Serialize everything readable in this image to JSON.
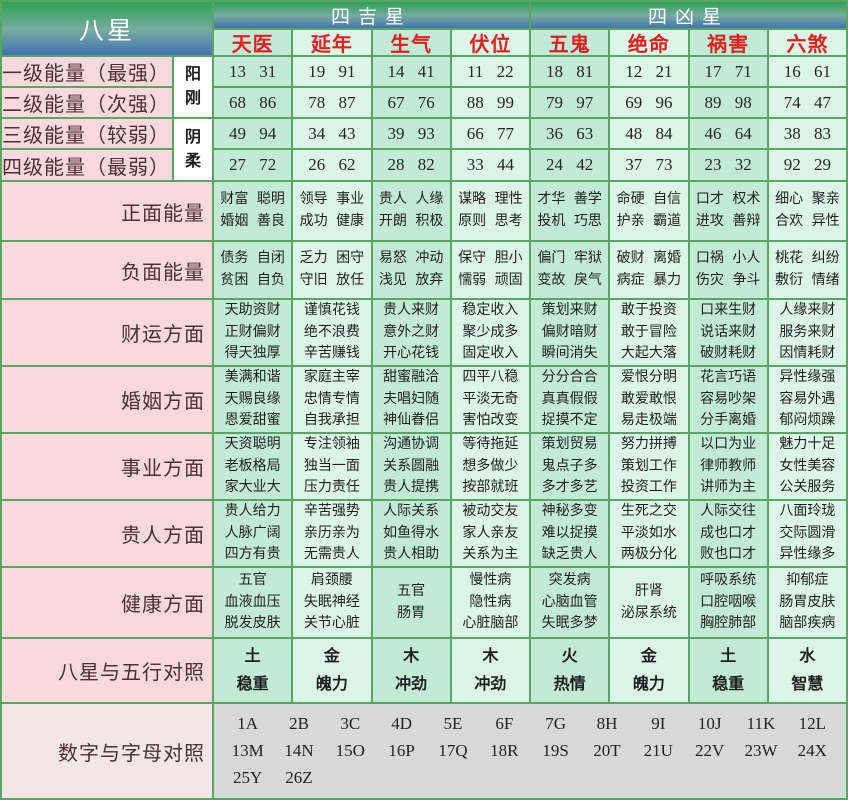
{
  "header": {
    "left": "八星",
    "auspicious": "四吉星",
    "inauspicious": "四凶星"
  },
  "stars": [
    "天医",
    "延年",
    "生气",
    "伏位",
    "五鬼",
    "绝命",
    "祸害",
    "六煞"
  ],
  "energy": {
    "rows": [
      {
        "label": "一级能量（最强）",
        "values": [
          "13 31",
          "19 91",
          "14 41",
          "11 22",
          "18 81",
          "12 21",
          "17 71",
          "16 61"
        ]
      },
      {
        "label": "二级能量（次强）",
        "values": [
          "68 86",
          "78 87",
          "67 76",
          "88 99",
          "79 97",
          "69 96",
          "89 98",
          "74 47"
        ]
      },
      {
        "label": "三级能量（较弱）",
        "values": [
          "49 94",
          "34 43",
          "39 93",
          "66 77",
          "36 63",
          "48 84",
          "46 64",
          "38 83"
        ]
      },
      {
        "label": "四级能量（最弱）",
        "values": [
          "27 72",
          "26 62",
          "28 82",
          "33 44",
          "24 42",
          "37 73",
          "23 32",
          "92 29"
        ]
      }
    ],
    "side_labels": [
      {
        "label": "阳刚",
        "span_rows": 2
      },
      {
        "label": "阴柔",
        "span_rows": 2
      }
    ]
  },
  "attribute_rows": [
    {
      "label": "正面能量",
      "cells": [
        [
          "财富 聪明",
          "婚姻 善良"
        ],
        [
          "领导 事业",
          "成功 健康"
        ],
        [
          "贵人 人缘",
          "开朗 积极"
        ],
        [
          "谋略 理性",
          "原则 思考"
        ],
        [
          "才华 善学",
          "投机 巧思"
        ],
        [
          "命硬 自信",
          "护亲 霸道"
        ],
        [
          "口才 权术",
          "进攻 善辩"
        ],
        [
          "细心 聚亲",
          "合欢 异性"
        ]
      ]
    },
    {
      "label": "负面能量",
      "cells": [
        [
          "债务 自闭",
          "贫困 自负"
        ],
        [
          "乏力 困守",
          "守旧 放任"
        ],
        [
          "易怒 冲动",
          "浅见 放弃"
        ],
        [
          "保守 胆小",
          "懦弱 顽固"
        ],
        [
          "偏门 牢狱",
          "变故 戾气"
        ],
        [
          "破财 离婚",
          "病症 暴力"
        ],
        [
          "口祸 小人",
          "伤灾 争斗"
        ],
        [
          "桃花 纠纷",
          "敷衍 情绪"
        ]
      ]
    },
    {
      "label": "财运方面",
      "cells": [
        [
          "天助资财",
          "正财偏财",
          "得天独厚"
        ],
        [
          "谨慎花钱",
          "绝不浪费",
          "辛苦赚钱"
        ],
        [
          "贵人来财",
          "意外之财",
          "开心花钱"
        ],
        [
          "稳定收入",
          "聚少成多",
          "固定收入"
        ],
        [
          "策划来财",
          "偏财暗财",
          "瞬间消失"
        ],
        [
          "敢于投资",
          "敢于冒险",
          "大起大落"
        ],
        [
          "口来生财",
          "说话来财",
          "破财耗财"
        ],
        [
          "人缘来财",
          "服务来财",
          "因情耗财"
        ]
      ]
    },
    {
      "label": "婚姻方面",
      "cells": [
        [
          "美满和谐",
          "天赐良缘",
          "恩爱甜蜜"
        ],
        [
          "家庭主宰",
          "忠情专情",
          "自我承担"
        ],
        [
          "甜蜜融洽",
          "夫唱妇随",
          "神仙眷侣"
        ],
        [
          "四平八稳",
          "平淡无奇",
          "害怕改变"
        ],
        [
          "分分合合",
          "真真假假",
          "捉摸不定"
        ],
        [
          "爱恨分明",
          "敢爱敢恨",
          "易走极端"
        ],
        [
          "花言巧语",
          "容易吵架",
          "分手离婚"
        ],
        [
          "异性缘强",
          "容易外遇",
          "郁闷烦躁"
        ]
      ]
    },
    {
      "label": "事业方面",
      "cells": [
        [
          "天资聪明",
          "老板格局",
          "家大业大"
        ],
        [
          "专注领袖",
          "独当一面",
          "压力责任"
        ],
        [
          "沟通协调",
          "关系圆融",
          "贵人提携"
        ],
        [
          "等待拖延",
          "想多做少",
          "按部就班"
        ],
        [
          "策划贸易",
          "鬼点子多",
          "多才多艺"
        ],
        [
          "努力拼搏",
          "策划工作",
          "投资工作"
        ],
        [
          "以口为业",
          "律师教师",
          "讲师为主"
        ],
        [
          "魅力十足",
          "女性美容",
          "公关服务"
        ]
      ]
    },
    {
      "label": "贵人方面",
      "cells": [
        [
          "贵人给力",
          "人脉广阔",
          "四方有贵"
        ],
        [
          "辛苦强势",
          "亲历亲为",
          "无需贵人"
        ],
        [
          "人际关系",
          "如鱼得水",
          "贵人相助"
        ],
        [
          "被动交友",
          "家人亲友",
          "关系为主"
        ],
        [
          "神秘多变",
          "难以捉摸",
          "缺乏贵人"
        ],
        [
          "生死之交",
          "平淡如水",
          "两极分化"
        ],
        [
          "人际交往",
          "成也口才",
          "败也口才"
        ],
        [
          "八面玲珑",
          "交际圆滑",
          "异性缘多"
        ]
      ]
    },
    {
      "label": "健康方面",
      "cells": [
        [
          "五官",
          "血液血压",
          "脱发皮肤"
        ],
        [
          "肩颈腰",
          "失眠神经",
          "关节心脏"
        ],
        [
          "五官",
          "肠胃"
        ],
        [
          "慢性病",
          "隐性病",
          "心脏脑部"
        ],
        [
          "突发病",
          "心脑血管",
          "失眠多梦"
        ],
        [
          "肝肾",
          "泌尿系统"
        ],
        [
          "呼吸系统",
          "口腔咽喉",
          "胸腔肺部"
        ],
        [
          "抑郁症",
          "肠胃皮肤",
          "脑部疾病"
        ]
      ]
    }
  ],
  "elements_row": {
    "label": "八星与五行对照",
    "cells": [
      [
        "土",
        "稳重"
      ],
      [
        "金",
        "魄力"
      ],
      [
        "木",
        "冲劲"
      ],
      [
        "木",
        "冲劲"
      ],
      [
        "火",
        "热情"
      ],
      [
        "金",
        "魄力"
      ],
      [
        "土",
        "稳重"
      ],
      [
        "水",
        "智慧"
      ]
    ]
  },
  "letters_row": {
    "label": "数字与字母对照",
    "lines": [
      [
        "1A",
        "2B",
        "3C",
        "4D",
        "5E",
        "6F",
        "7G",
        "8H",
        "9I",
        "10J",
        "11K",
        "12L"
      ],
      [
        "13M",
        "14N",
        "15O",
        "16P",
        "17Q",
        "18R",
        "19S",
        "20T",
        "21U",
        "22V",
        "23W",
        "24X"
      ],
      [
        "25Y",
        "26Z"
      ]
    ]
  },
  "colors": {
    "header_gradient_top": "#2ca153",
    "header_gradient_bottom": "#4173b5",
    "star_name_red": "#e31e1c",
    "column_tint_a": "#c2ebd7",
    "column_tint_b": "#dcf5e9",
    "label_pink": "#f9d9dd",
    "label_text": "#4a3134",
    "border_green": "#58a662",
    "bottom_gray": "#d8d8d8"
  }
}
